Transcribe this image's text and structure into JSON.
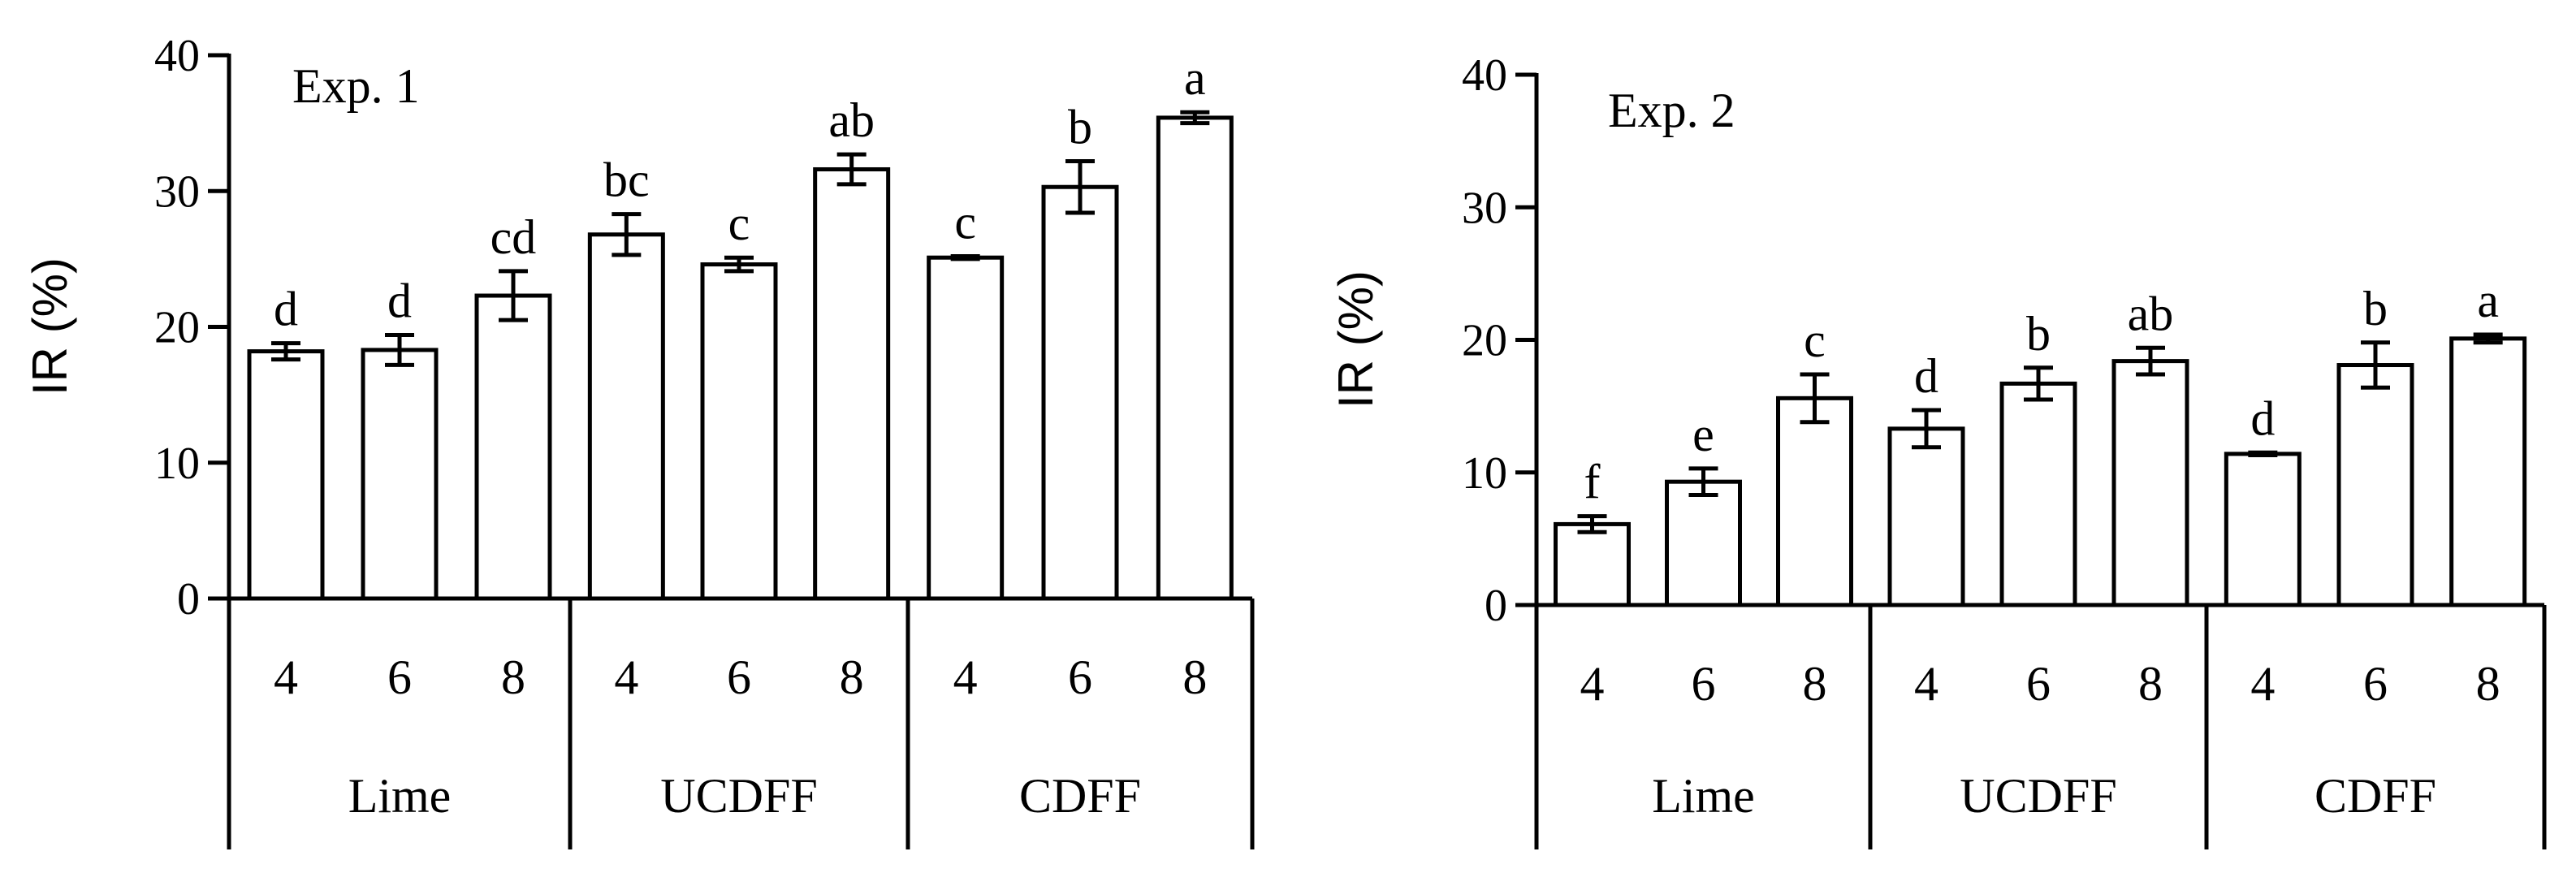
{
  "chart_data": [
    {
      "type": "bar",
      "panel_label": "Exp. 1",
      "ylabel": "IR (%)",
      "xlabel": "",
      "ylim": [
        0,
        40
      ],
      "yticks": [
        "0",
        "10",
        "20",
        "30",
        "40"
      ],
      "grid": false,
      "groups": [
        {
          "name": "Lime",
          "categories": [
            "4",
            "6",
            "8"
          ]
        },
        {
          "name": "UCDFF",
          "categories": [
            "4",
            "6",
            "8"
          ]
        },
        {
          "name": "CDFF",
          "categories": [
            "4",
            "6",
            "8"
          ]
        }
      ],
      "values": [
        18.2,
        18.3,
        22.3,
        26.8,
        24.6,
        31.6,
        25.1,
        30.3,
        35.4
      ],
      "errors": [
        0.6,
        1.1,
        1.8,
        1.5,
        0.5,
        1.1,
        0.1,
        1.9,
        0.4
      ],
      "letters": [
        "d",
        "d",
        "cd",
        "bc",
        "c",
        "ab",
        "c",
        "b",
        "a"
      ]
    },
    {
      "type": "bar",
      "panel_label": "Exp. 2",
      "ylabel": "IR (%)",
      "xlabel": "",
      "ylim": [
        0,
        40
      ],
      "yticks": [
        "0",
        "10",
        "20",
        "30",
        "40"
      ],
      "grid": false,
      "groups": [
        {
          "name": "Lime",
          "categories": [
            "4",
            "6",
            "8"
          ]
        },
        {
          "name": "UCDFF",
          "categories": [
            "4",
            "6",
            "8"
          ]
        },
        {
          "name": "CDFF",
          "categories": [
            "4",
            "6",
            "8"
          ]
        }
      ],
      "values": [
        6.1,
        9.3,
        15.6,
        13.3,
        16.7,
        18.4,
        11.4,
        18.1,
        20.1
      ],
      "errors": [
        0.6,
        1.0,
        1.8,
        1.4,
        1.2,
        1.0,
        0.1,
        1.7,
        0.3
      ],
      "letters": [
        "f",
        "e",
        "c",
        "d",
        "b",
        "ab",
        "d",
        "b",
        "a"
      ]
    }
  ]
}
